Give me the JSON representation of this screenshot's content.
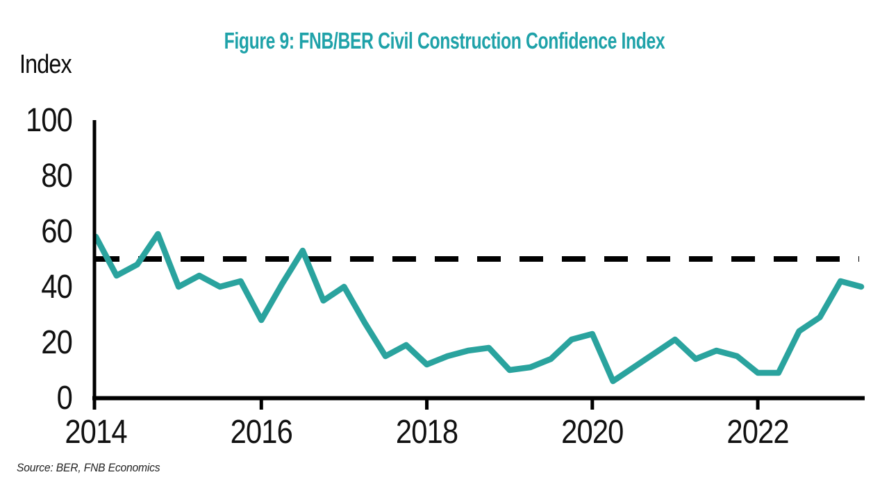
{
  "page": {
    "background": "#ffffff"
  },
  "chart_data": {
    "type": "line",
    "title": "Figure 9: FNB/BER Civil Construction Confidence Index",
    "title_color": "#1fa2a9",
    "ylabel": "Index",
    "xlabel": "",
    "source": "Source: BER, FNB Economics",
    "ylim": [
      0,
      100
    ],
    "yticks": [
      0,
      20,
      40,
      60,
      80,
      100
    ],
    "xticks": [
      2014,
      2016,
      2018,
      2020,
      2022
    ],
    "grid": false,
    "legend_position": "none",
    "axis_color": "#000000",
    "tick_label_color": "#111111",
    "reference_line": {
      "value": 50,
      "style": "dashed",
      "color": "#000000"
    },
    "series": [
      {
        "name": "FNB/BER Civil Construction Confidence Index",
        "color": "#2aa39e",
        "x": [
          "2014Q1",
          "2014Q2",
          "2014Q3",
          "2014Q4",
          "2015Q1",
          "2015Q2",
          "2015Q3",
          "2015Q4",
          "2016Q1",
          "2016Q2",
          "2016Q3",
          "2016Q4",
          "2017Q1",
          "2017Q2",
          "2017Q3",
          "2017Q4",
          "2018Q1",
          "2018Q2",
          "2018Q3",
          "2018Q4",
          "2019Q1",
          "2019Q2",
          "2019Q3",
          "2019Q4",
          "2020Q1",
          "2020Q2",
          "2020Q3",
          "2020Q4",
          "2021Q1",
          "2021Q2",
          "2021Q3",
          "2021Q4",
          "2022Q1",
          "2022Q2",
          "2022Q3",
          "2022Q4",
          "2023Q1",
          "2023Q2"
        ],
        "values": [
          58,
          44,
          48,
          59,
          40,
          44,
          40,
          42,
          28,
          41,
          53,
          35,
          40,
          27,
          15,
          19,
          12,
          15,
          17,
          18,
          10,
          11,
          14,
          21,
          23,
          6,
          11,
          16,
          21,
          14,
          17,
          15,
          9,
          9,
          24,
          29,
          42,
          40
        ]
      }
    ]
  }
}
